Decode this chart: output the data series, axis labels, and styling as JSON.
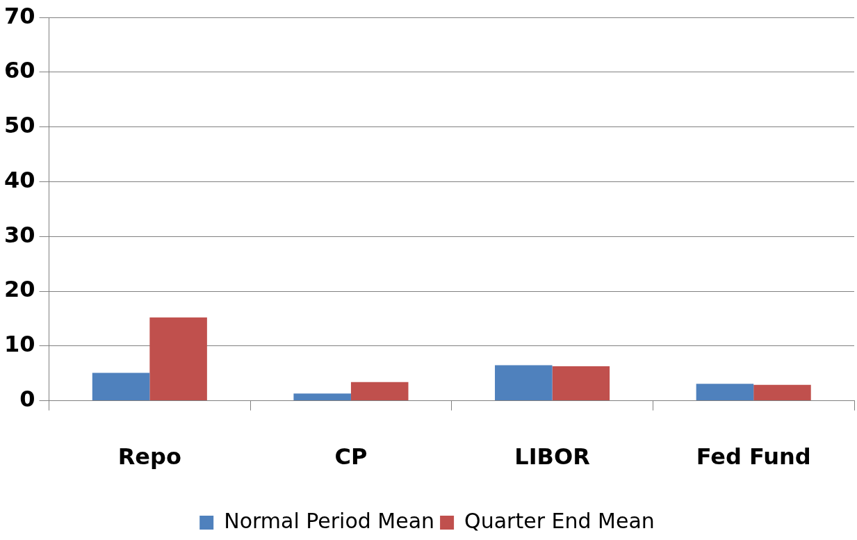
{
  "chart_data": {
    "type": "bar",
    "categories": [
      "Repo",
      "CP",
      "LIBOR",
      "Fed Fund"
    ],
    "series": [
      {
        "name": "Normal Period Mean",
        "color": "#4f81bd",
        "values": [
          5.1,
          1.3,
          6.5,
          3.1
        ]
      },
      {
        "name": "Quarter End Mean",
        "color": "#c0504d",
        "values": [
          15.2,
          3.4,
          6.3,
          2.9
        ]
      }
    ],
    "ylim": [
      0,
      70
    ],
    "yticks": [
      0,
      10,
      20,
      30,
      40,
      50,
      60,
      70
    ],
    "grid": "y",
    "legend": "bottom"
  }
}
